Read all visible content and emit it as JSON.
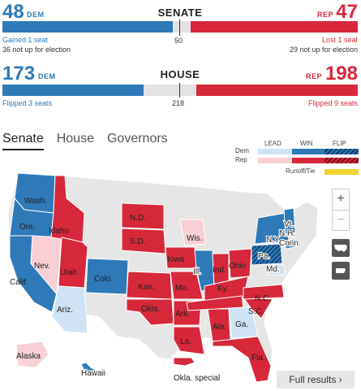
{
  "senate": {
    "title": "SENATE",
    "dem_count": "48",
    "dem_label": "DEM",
    "rep_count": "47",
    "rep_label": "REP",
    "majority": "50",
    "dem_note_1": "Gained 1 seat",
    "dem_note_2": "36 not up for election",
    "rep_note_1": "Lost 1 seat",
    "rep_note_2": "29 not up for election",
    "dem_seats": 48,
    "rep_seats": 47,
    "total": 100
  },
  "house": {
    "title": "HOUSE",
    "dem_count": "173",
    "dem_label": "DEM",
    "rep_count": "198",
    "rep_label": "REP",
    "majority": "218",
    "dem_note": "Flipped 3 seats",
    "rep_note": "Flipped 9 seats",
    "dem_seats": 173,
    "rep_seats": 198,
    "total": 435
  },
  "tabs": [
    {
      "label": "Senate",
      "active": true
    },
    {
      "label": "House",
      "active": false
    },
    {
      "label": "Governors",
      "active": false
    }
  ],
  "legend": {
    "lead": "LEAD",
    "win": "WIN",
    "flip": "FLIP",
    "dem": "Dem",
    "rep": "Rep",
    "runoff": "Runoff/Tie"
  },
  "colors": {
    "dem": "#2e7ab8",
    "rep": "#d6283a",
    "dem_lead": "#cfe3f4",
    "rep_lead": "#f7cfd4",
    "runoff": "#f2d22e",
    "none": "#e6e6e6"
  },
  "map_labels": {
    "wash": "Wash.",
    "ore": "Ore.",
    "calif": "Calif.",
    "idaho": "Idaho",
    "nev": "Nev.",
    "utah": "Utah",
    "ariz": "Ariz.",
    "colo": "Colo.",
    "nd": "N.D.",
    "sd": "S.D.",
    "kan": "Kan.",
    "okla": "Okla.",
    "iowa": "Iowa",
    "mo": "Mo.",
    "ark": "Ark.",
    "la": "La.",
    "wis": "Wis.",
    "ill": "Ill.",
    "ind": "Ind.",
    "ohio": "Ohio",
    "ky": "Ky.",
    "ala": "Ala.",
    "ga": "Ga.",
    "fla": "Fla.",
    "sc": "S.C.",
    "nc": "N.C.",
    "pa": "Pa.",
    "ny": "N.Y.",
    "md": "Md.",
    "conn": "Conn.",
    "nh": "N.H.",
    "vt": "Vt.",
    "alaska": "Alaska",
    "hawaii": "Hawaii",
    "okla_special": "Okla. special"
  },
  "icons": {
    "zoom_in": "plus-icon",
    "zoom_out": "minus-icon",
    "us_view": "us-map-icon",
    "pa_view": "pennsylvania-icon"
  },
  "full_results": "Full results ›"
}
